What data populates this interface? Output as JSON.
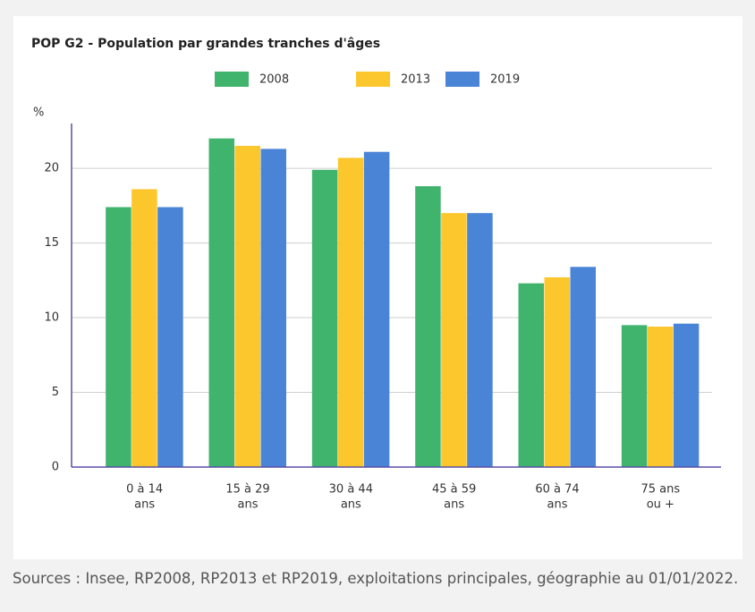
{
  "chart_data": {
    "type": "bar",
    "title": "POP G2 - Population par grandes tranches d'âges",
    "y_label": "%",
    "categories": [
      [
        "0 à 14",
        "ans"
      ],
      [
        "15 à 29",
        "ans"
      ],
      [
        "30 à 44",
        "ans"
      ],
      [
        "45 à 59",
        "ans"
      ],
      [
        "60 à 74",
        "ans"
      ],
      [
        "75 ans",
        "ou +"
      ]
    ],
    "series": [
      {
        "name": "2008",
        "color": "#40b36c",
        "values": [
          17.4,
          22.0,
          19.9,
          18.8,
          12.3,
          9.5
        ]
      },
      {
        "name": "2013",
        "color": "#fcc62d",
        "values": [
          18.6,
          21.5,
          20.7,
          17.0,
          12.7,
          9.4
        ]
      },
      {
        "name": "2019",
        "color": "#4a84d6",
        "values": [
          17.4,
          21.3,
          21.1,
          17.0,
          13.4,
          9.6
        ]
      }
    ],
    "ylim": [
      0,
      23
    ],
    "yticks": [
      0,
      5,
      10,
      15,
      20
    ],
    "grid": true,
    "legend": "top",
    "source": "Sources : Insee, RP2008, RP2013 et RP2019, exploitations principales, géographie au 01/01/2022."
  }
}
